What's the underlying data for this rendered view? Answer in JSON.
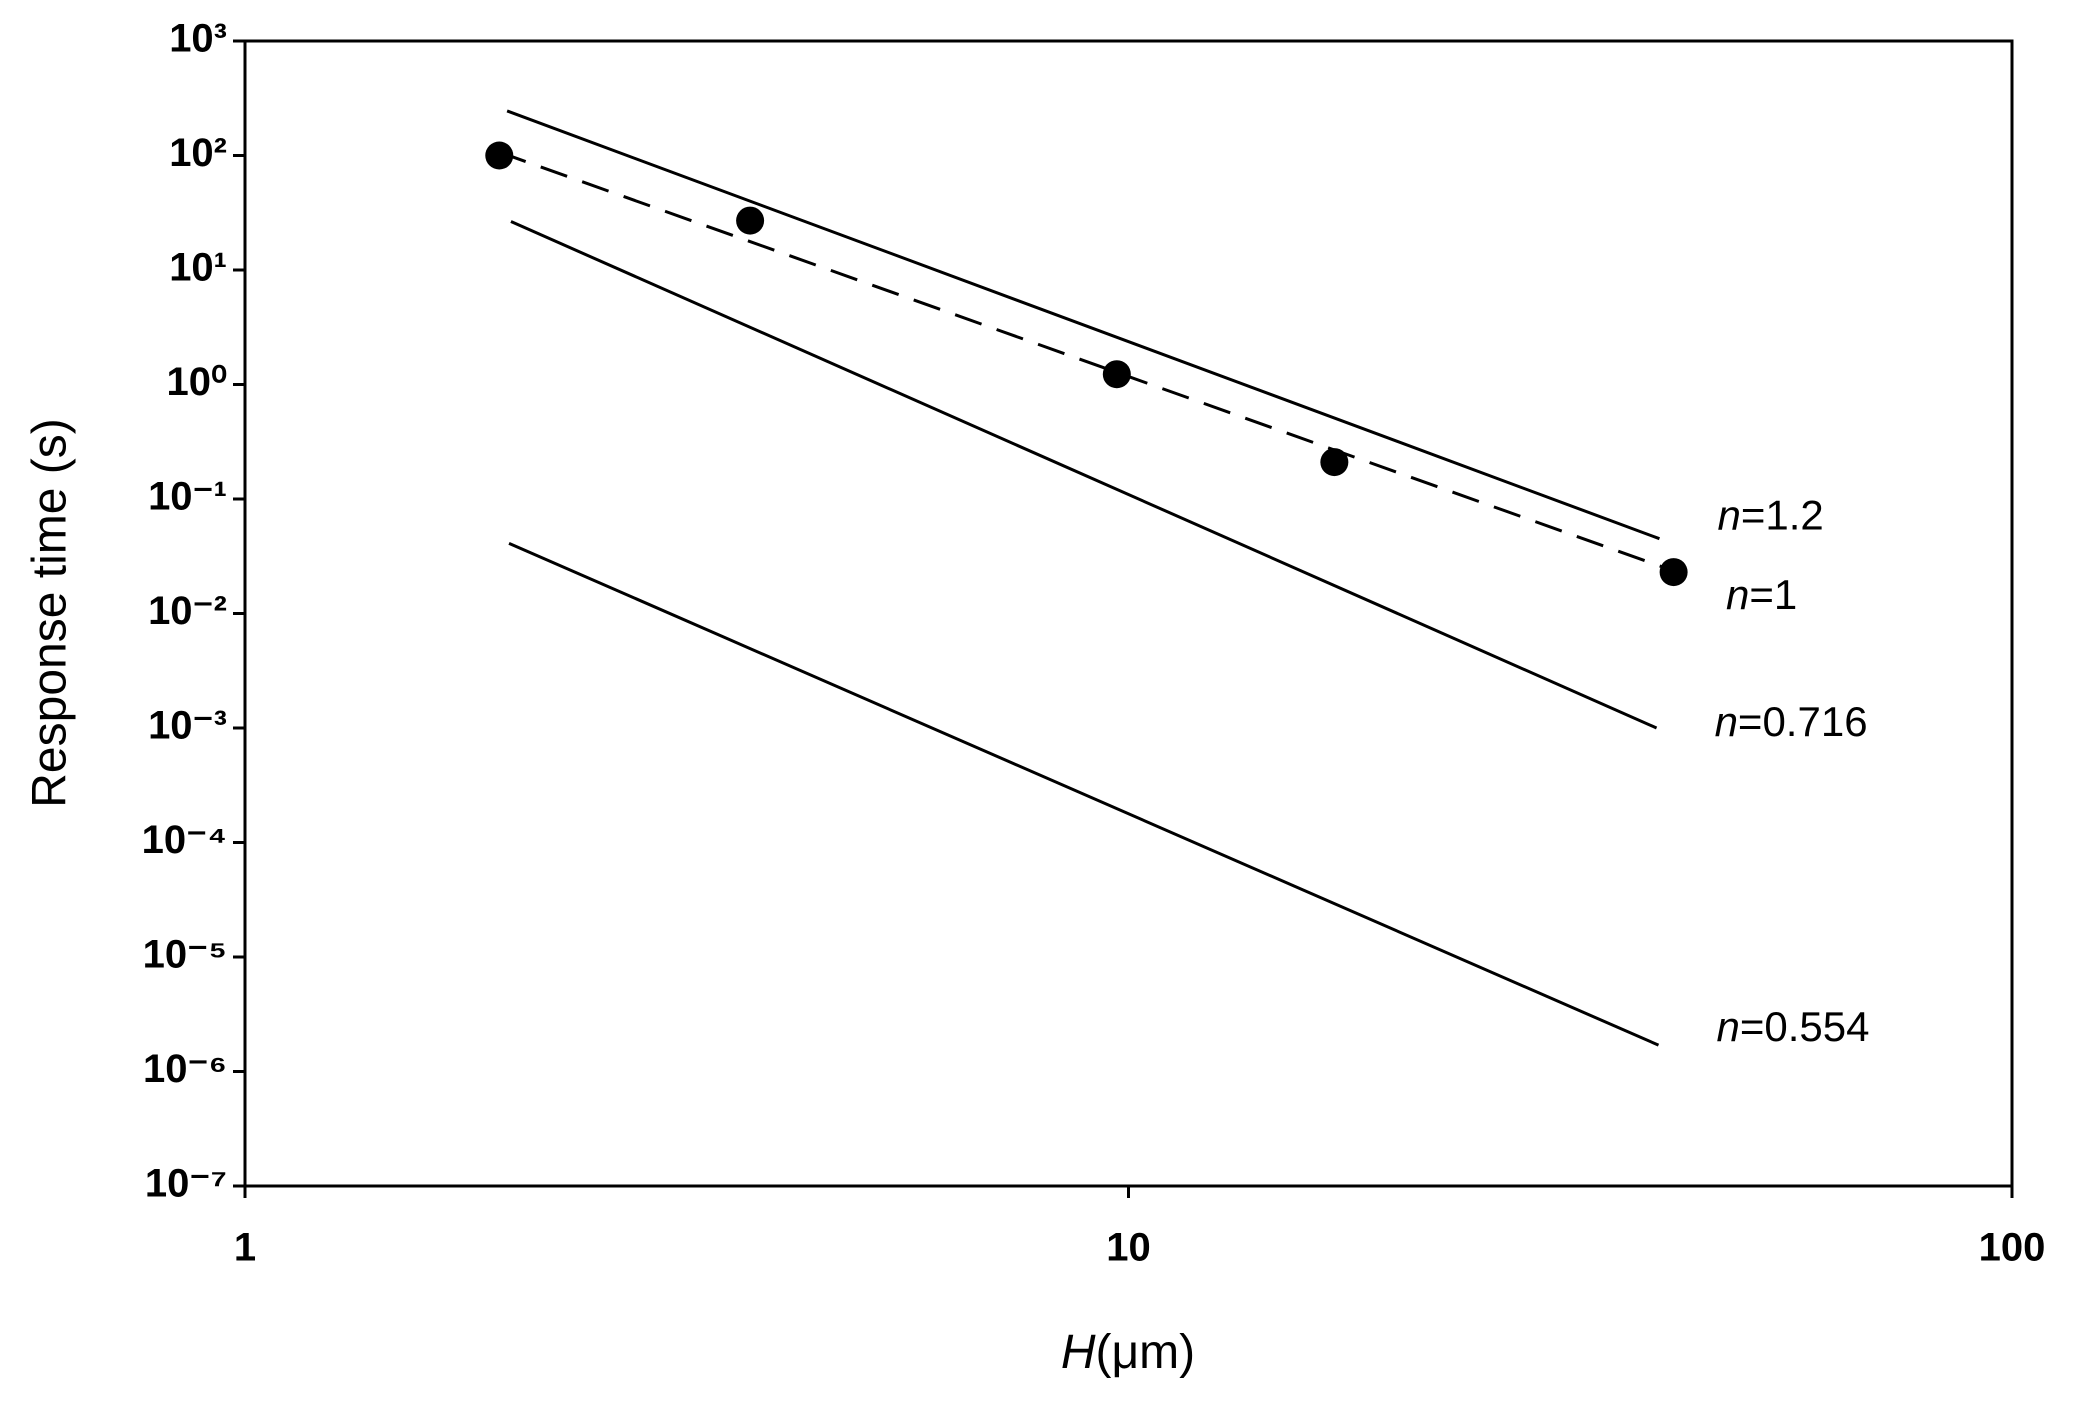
{
  "chart_data": {
    "type": "line",
    "x_label": "H(μm)",
    "y_label": "Response time (s)",
    "xlim": [
      1,
      100
    ],
    "xticks": [
      1,
      10,
      100
    ],
    "xscale": "log",
    "ylim": [
      1e-07,
      1000
    ],
    "yscale": "log",
    "yticks": [
      {
        "value": 1e-07,
        "label": "10⁻⁷"
      },
      {
        "value": 1e-06,
        "label": "10⁻⁶"
      },
      {
        "value": 1e-05,
        "label": "10⁻⁵"
      },
      {
        "value": 0.0001,
        "label": "10⁻⁴"
      },
      {
        "value": 0.001,
        "label": "10⁻³"
      },
      {
        "value": 0.01,
        "label": "10⁻²"
      },
      {
        "value": 0.1,
        "label": "10⁻¹"
      },
      {
        "value": 1,
        "label": "10⁰"
      },
      {
        "value": 10,
        "label": "10¹"
      },
      {
        "value": 100,
        "label": "10²"
      },
      {
        "value": 1000,
        "label": "10³"
      }
    ],
    "series": [
      {
        "name": "n=1.2",
        "color": "#000000",
        "dash": false,
        "x": [
          1.98,
          39.9
        ],
        "values": [
          245,
          0.045
        ]
      },
      {
        "name": "n=1",
        "color": "#000000",
        "dash": true,
        "x": [
          1.94,
          40.8
        ],
        "values": [
          107,
          0.0245
        ]
      },
      {
        "name": "n=0.716",
        "color": "#000000",
        "dash": false,
        "x": [
          2.0,
          39.6
        ],
        "values": [
          26.5,
          0.001
        ]
      },
      {
        "name": "n=0.554",
        "color": "#000000",
        "dash": false,
        "x": [
          1.99,
          39.8
        ],
        "values": [
          0.041,
          1.7e-06
        ]
      }
    ],
    "points": {
      "color": "#000000",
      "x": [
        1.94,
        3.73,
        9.7,
        17.1,
        41.4
      ],
      "values": [
        100,
        27,
        1.23,
        0.21,
        0.023
      ]
    }
  }
}
